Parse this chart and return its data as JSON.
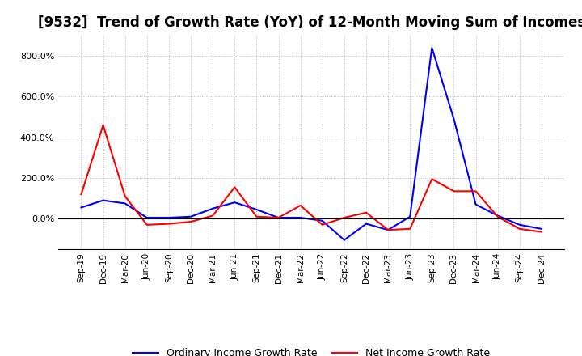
{
  "title": "[9532]  Trend of Growth Rate (YoY) of 12-Month Moving Sum of Incomes",
  "title_fontsize": 12,
  "x_labels": [
    "Sep-19",
    "Dec-19",
    "Mar-20",
    "Jun-20",
    "Sep-20",
    "Dec-20",
    "Mar-21",
    "Jun-21",
    "Sep-21",
    "Dec-21",
    "Mar-22",
    "Jun-22",
    "Sep-22",
    "Dec-22",
    "Mar-23",
    "Jun-23",
    "Sep-23",
    "Dec-23",
    "Mar-24",
    "Jun-24",
    "Sep-24",
    "Dec-24"
  ],
  "ordinary_income": [
    55,
    90,
    75,
    5,
    5,
    10,
    50,
    80,
    45,
    5,
    5,
    -10,
    -105,
    -25,
    -55,
    10,
    840,
    490,
    70,
    15,
    -30,
    -50
  ],
  "net_income": [
    120,
    460,
    110,
    -30,
    -25,
    -15,
    15,
    155,
    10,
    5,
    65,
    -30,
    5,
    30,
    -55,
    -50,
    195,
    135,
    135,
    10,
    -50,
    -65
  ],
  "ordinary_color": "#0000ff",
  "net_color": "#ff0000",
  "legend_ordinary": "Ordinary Income Growth Rate",
  "legend_net": "Net Income Growth Rate",
  "ylim": [
    -150,
    900
  ],
  "yticks": [
    0,
    200,
    400,
    600,
    800
  ],
  "background_color": "#ffffff",
  "grid_color": "#bbbbbb"
}
